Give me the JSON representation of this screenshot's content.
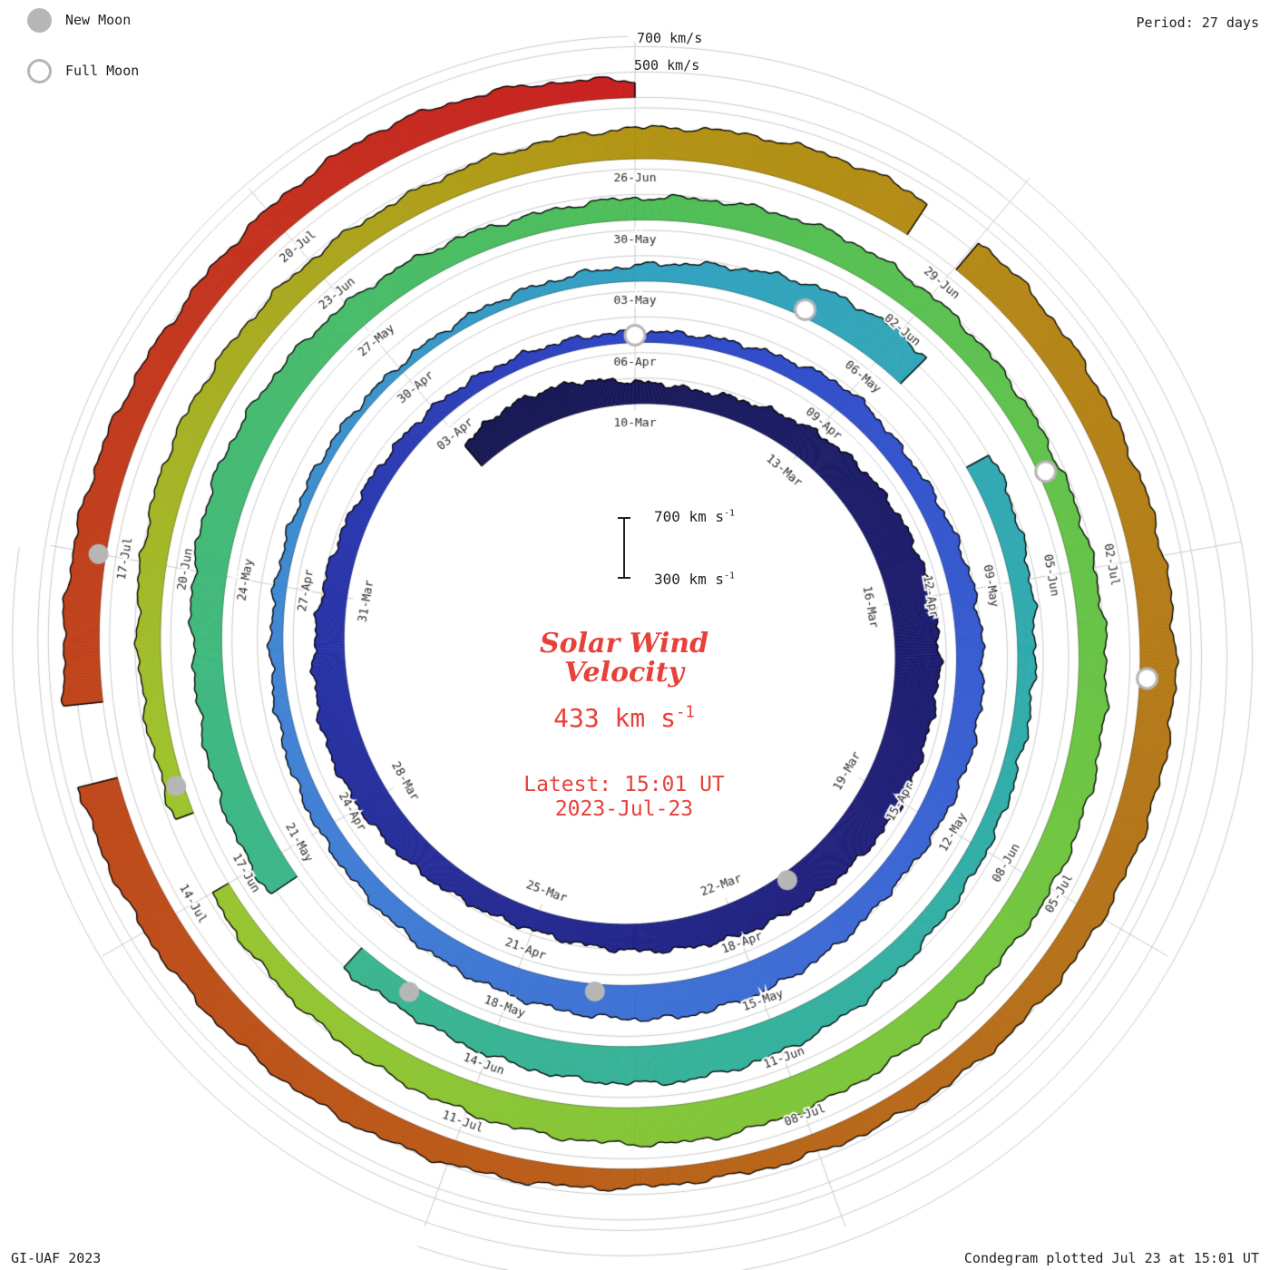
{
  "colors": {
    "accent_red": "#e8403a",
    "grid": "#c9c9c9",
    "moon": "#b6b6b6",
    "label": "#2a2a2a",
    "edge": "#000000"
  },
  "legend": {
    "new_moon": "New Moon",
    "full_moon": "Full Moon"
  },
  "header": {
    "period_label": "Period: 27 days"
  },
  "top_scale_labels": {
    "outer": "700 km/s",
    "inner": "500 km/s"
  },
  "scale_bar": {
    "top_label": "700 km s",
    "bottom_label": "300 km s",
    "sup": "-1"
  },
  "center": {
    "title_line1": "Solar Wind",
    "title_line2": "Velocity",
    "value": "433 km s",
    "value_sup": "-1",
    "latest_line1": "Latest: 15:01 UT",
    "latest_line2": "2023-Jul-23"
  },
  "footer": {
    "left": "GI-UAF 2023",
    "right": "Condegram plotted Jul 23 at 15:01 UT"
  },
  "chart_data": {
    "type": "spiral_time_series_condegram",
    "title": "Solar Wind Velocity",
    "units": "km/s",
    "period_days": 27,
    "angle_zero_date": "2023-03-10",
    "label_step_days": 3,
    "radial_scale": {
      "base_km_s": 300,
      "top_km_s": 700,
      "gridlines_km_s": [
        300,
        500,
        700
      ]
    },
    "latest": {
      "value_km_s": 433,
      "time_ut": "15:01",
      "date": "2023-Jul-23"
    },
    "date_labels": [
      "10-Mar",
      "13-Mar",
      "16-Mar",
      "19-Mar",
      "22-Mar",
      "25-Mar",
      "28-Mar",
      "31-Mar",
      "03-Apr",
      "06-Apr",
      "09-Apr",
      "12-Apr",
      "15-Apr",
      "18-Apr",
      "21-Apr",
      "24-Apr",
      "27-Apr",
      "30-Apr",
      "03-May",
      "06-May",
      "09-May",
      "12-May",
      "15-May",
      "18-May",
      "21-May",
      "24-May",
      "27-May",
      "30-May",
      "02-Jun",
      "05-Jun",
      "08-Jun",
      "11-Jun",
      "14-Jun",
      "17-Jun",
      "20-Jun",
      "23-Jun",
      "26-Jun",
      "29-Jun",
      "02-Jul",
      "05-Jul",
      "08-Jul",
      "11-Jul",
      "14-Jul",
      "17-Jul",
      "20-Jul"
    ],
    "velocity_km_s": {
      "t_start_days": -3,
      "dt_days": 1,
      "values": [
        520,
        560,
        540,
        470,
        440,
        480,
        540,
        590,
        620,
        640,
        650,
        630,
        640,
        610,
        580,
        560,
        530,
        490,
        460,
        480,
        520,
        560,
        580,
        550,
        500,
        460,
        430,
        420,
        400,
        390,
        380,
        390,
        420,
        480,
        440,
        460,
        490,
        510,
        520,
        500,
        480,
        520,
        560,
        580,
        550,
        520,
        490,
        460,
        440,
        420,
        400,
        390,
        380,
        370,
        360,
        370,
        390,
        420,
        480,
        560,
        600,
        550,
        500,
        460,
        430,
        420,
        440,
        460,
        520,
        570,
        600,
        580,
        540,
        500,
        530,
        560,
        540,
        520,
        560,
        590,
        560,
        520,
        480,
        450,
        470,
        500,
        520,
        500,
        480,
        470,
        490,
        520,
        540,
        550,
        530,
        550,
        580,
        600,
        570,
        540,
        510,
        480,
        460,
        450,
        470,
        500,
        520,
        500,
        480,
        470,
        500,
        540,
        570,
        600,
        590,
        560,
        540,
        560,
        580,
        560,
        530,
        500,
        470,
        450,
        430,
        460,
        490,
        520,
        550,
        580,
        610,
        590,
        560,
        530,
        500,
        520,
        550,
        500,
        433
      ]
    },
    "data_gaps_t": [
      [
        57.4,
        58.6
      ],
      [
        70.7,
        71.7
      ],
      [
        99.0,
        99.7
      ],
      [
        110.5,
        111.0
      ],
      [
        127.2,
        127.8
      ]
    ],
    "new_moons_t": [
      11,
      41,
      70,
      100,
      129
    ],
    "full_moons_t": [
      27,
      56,
      86,
      115
    ],
    "colormap": [
      {
        "t": -3,
        "c": "#12124e"
      },
      {
        "t": 10,
        "c": "#1c1c78"
      },
      {
        "t": 21,
        "c": "#2531a8"
      },
      {
        "t": 28,
        "c": "#2c46c8"
      },
      {
        "t": 38,
        "c": "#3a68d4"
      },
      {
        "t": 47,
        "c": "#3f83d4"
      },
      {
        "t": 54,
        "c": "#2fa0c0"
      },
      {
        "t": 63,
        "c": "#2fada6"
      },
      {
        "t": 72,
        "c": "#3ab688"
      },
      {
        "t": 81,
        "c": "#4cbd57"
      },
      {
        "t": 91,
        "c": "#74c63c"
      },
      {
        "t": 100,
        "c": "#9cc42c"
      },
      {
        "t": 108,
        "c": "#b29312"
      },
      {
        "t": 116,
        "c": "#b47618"
      },
      {
        "t": 124,
        "c": "#bb5517"
      },
      {
        "t": 130,
        "c": "#c13a1c"
      },
      {
        "t": 135,
        "c": "#c81f1f"
      }
    ]
  }
}
